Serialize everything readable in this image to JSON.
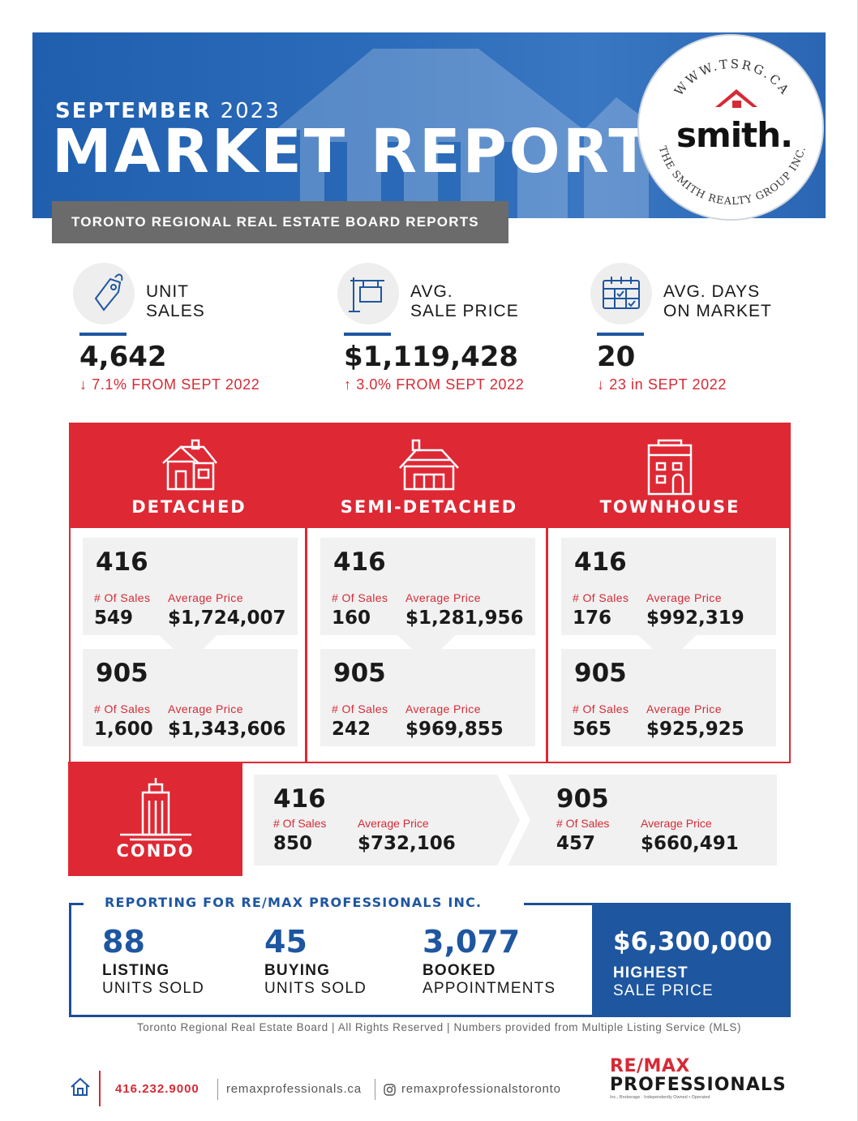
{
  "header": {
    "month": "SEPTEMBER",
    "year": "2023",
    "title": "MARKET REPORT",
    "subtitle": "TORONTO REGIONAL REAL ESTATE BOARD REPORTS",
    "banner_color": "#2a66b4"
  },
  "logo": {
    "url_text": "WWW.TSRG.CA",
    "word": "smith.",
    "company": "THE SMITH REALTY GROUP INC."
  },
  "stats": [
    {
      "label_line1": "UNIT",
      "label_line2": "SALES",
      "value": "4,642",
      "change_arrow": "↓",
      "change": "7.1% FROM SEPT 2022",
      "icon": "price-tag-icon"
    },
    {
      "label_line1": "AVG.",
      "label_line2": "SALE PRICE",
      "value": "$1,119,428",
      "change_arrow": "↑",
      "change": "3.0% FROM SEPT 2022",
      "icon": "for-sale-sign-icon"
    },
    {
      "label_line1": "AVG. DAYS",
      "label_line2": "ON MARKET",
      "value": "20",
      "change_arrow": "↓",
      "change": "23 in SEPT 2022",
      "icon": "calendar-icon"
    }
  ],
  "property_types": [
    {
      "name": "DETACHED",
      "icon": "detached-house-icon",
      "regions": [
        {
          "code": "416",
          "sales_label": "# Of Sales",
          "price_label": "Average Price",
          "sales": "549",
          "price": "$1,724,007"
        },
        {
          "code": "905",
          "sales_label": "# Of Sales",
          "price_label": "Average Price",
          "sales": "1,600",
          "price": "$1,343,606"
        }
      ]
    },
    {
      "name": "SEMI-DETACHED",
      "icon": "semi-detached-house-icon",
      "regions": [
        {
          "code": "416",
          "sales_label": "# Of Sales",
          "price_label": "Average Price",
          "sales": "160",
          "price": "$1,281,956"
        },
        {
          "code": "905",
          "sales_label": "# Of Sales",
          "price_label": "Average Price",
          "sales": "242",
          "price": "$969,855"
        }
      ]
    },
    {
      "name": "TOWNHOUSE",
      "icon": "townhouse-icon",
      "regions": [
        {
          "code": "416",
          "sales_label": "# Of Sales",
          "price_label": "Average Price",
          "sales": "176",
          "price": "$992,319"
        },
        {
          "code": "905",
          "sales_label": "# Of Sales",
          "price_label": "Average Price",
          "sales": "565",
          "price": "$925,925"
        }
      ]
    }
  ],
  "condo": {
    "name": "CONDO",
    "icon": "condo-tower-icon",
    "regions": [
      {
        "code": "416",
        "sales_label": "# Of Sales",
        "price_label": "Average Price",
        "sales": "850",
        "price": "$732,106"
      },
      {
        "code": "905",
        "sales_label": "# Of Sales",
        "price_label": "Average Price",
        "sales": "457",
        "price": "$660,491"
      }
    ]
  },
  "remax_report": {
    "title": "REPORTING FOR RE/MAX PROFESSIONALS INC.",
    "items": [
      {
        "value": "88",
        "line1": "LISTING",
        "line2": "UNITS SOLD"
      },
      {
        "value": "45",
        "line1": "BUYING",
        "line2": "UNITS SOLD"
      },
      {
        "value": "3,077",
        "line1": "BOOKED",
        "line2": "APPOINTMENTS"
      }
    ],
    "highest": {
      "value": "$6,300,000",
      "line1": "HIGHEST",
      "line2": "SALE PRICE"
    }
  },
  "footnote": "Toronto Regional Real Estate Board | All Rights Reserved | Numbers provided from Multiple Listing Service (MLS)",
  "footer": {
    "phone": "416.232.9000",
    "website": "remaxprofessionals.ca",
    "instagram": "remaxprofessionalstoronto",
    "brand_line1": "RE/MAX",
    "brand_line2": "PROFESSIONALS",
    "brand_tag": "Inc., Brokerage · Independently Owned • Operated"
  },
  "colors": {
    "red": "#de2834",
    "blue": "#1e56a0",
    "gray_card": "#f1f1f1",
    "dark_gray": "#6b6b6b"
  }
}
